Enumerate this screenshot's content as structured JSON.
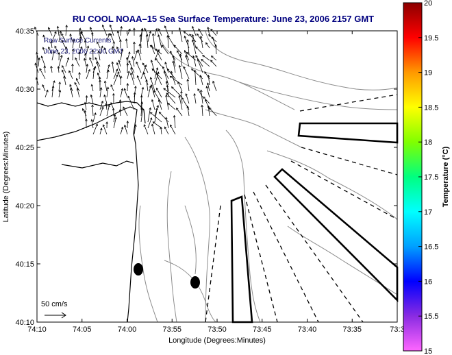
{
  "title": "RU COOL   NOAA–15  Sea Surface Temperature:  June 23, 2006 2157 GMT",
  "overlay_line1": "Raw Surface Currents",
  "overlay_line2": "June 23, 2006 22:00 GMT",
  "scale_label": "50 cm/s",
  "x_axis_label": "Longitude (Degrees:Minutes)",
  "y_axis_label": "Latitude (Degrees:Minutes)",
  "colorbar_label": "Temperature (°C)",
  "x_ticks": [
    "74:10",
    "74:05",
    "74:00",
    "73:55",
    "73:50",
    "73:45",
    "73:40",
    "73:35",
    "73:3"
  ],
  "y_ticks": [
    "40:35",
    "40:30",
    "40:25",
    "40:20",
    "40:15",
    "40:10"
  ],
  "colorbar_ticks": [
    "20",
    "19.5",
    "19",
    "18.5",
    "18",
    "17.5",
    "17",
    "16.5",
    "16",
    "15.5",
    "15"
  ],
  "colorbar_range": [
    15,
    20
  ],
  "colorbar_colors": [
    "#ff66ff",
    "#8a2be2",
    "#0000ff",
    "#00a0ff",
    "#00ffff",
    "#00ff80",
    "#80ff00",
    "#ffff00",
    "#ff9900",
    "#ff0000",
    "#8b0000"
  ]
}
